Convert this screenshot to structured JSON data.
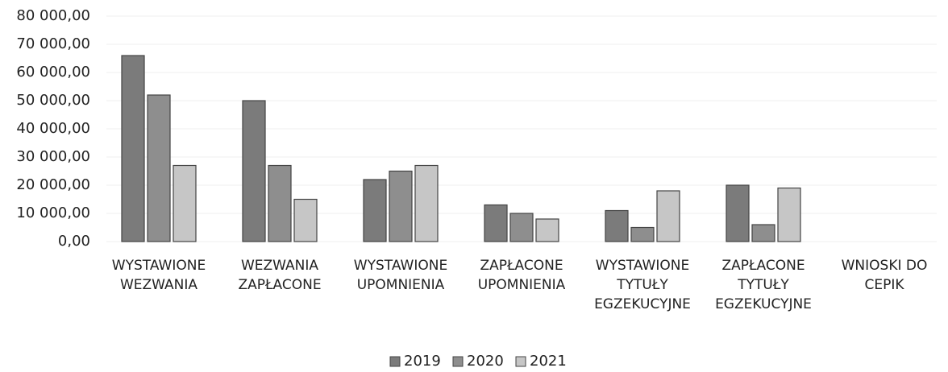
{
  "chart_data": {
    "type": "bar",
    "categories": [
      "WYSTAWIONE\nWEZWANIA",
      "WEZWANIA\nZAPŁACONE",
      "WYSTAWIONE\nUPOMNIENIA",
      "ZAPŁACONE\nUPOMNIENIA",
      "WYSTAWIONE\nTYTUŁY\nEGZEKUCYJNE",
      "ZAPŁACONE\nTYTUŁY\nEGZEKUCYJNE",
      "WNIOSKI DO\nCEPIK"
    ],
    "series": [
      {
        "name": "2019",
        "color": "#7b7b7b",
        "values": [
          66000,
          50000,
          22000,
          13000,
          11000,
          20000,
          0
        ]
      },
      {
        "name": "2020",
        "color": "#8e8e8e",
        "values": [
          52000,
          27000,
          25000,
          10000,
          5000,
          6000,
          0
        ]
      },
      {
        "name": "2021",
        "color": "#c6c6c6",
        "values": [
          27000,
          15000,
          27000,
          8000,
          18000,
          19000,
          0
        ]
      }
    ],
    "ylim": [
      0,
      80000
    ],
    "yticks": [
      {
        "value": 0,
        "label": "0,00"
      },
      {
        "value": 10000,
        "label": "10 000,00"
      },
      {
        "value": 20000,
        "label": "20 000,00"
      },
      {
        "value": 30000,
        "label": "30 000,00"
      },
      {
        "value": 40000,
        "label": "40 000,00"
      },
      {
        "value": 50000,
        "label": "50 000,00"
      },
      {
        "value": 60000,
        "label": "60 000,00"
      },
      {
        "value": 70000,
        "label": "70 000,00"
      },
      {
        "value": 80000,
        "label": "80 000,00"
      }
    ],
    "grid": true,
    "legend": "bottom"
  }
}
